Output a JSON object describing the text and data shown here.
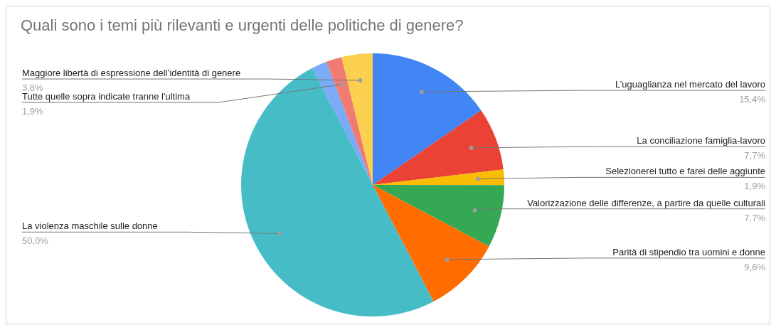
{
  "chart_data": {
    "type": "pie",
    "title": "Quali sono i temi più rilevanti e urgenti delle politiche di genere?",
    "categories": [
      "L’uguaglianza nel mercato del lavoro",
      "La conciliazione famiglia-lavoro",
      "Selezionerei tutto e farei delle aggiunte",
      "Valorizzazione delle differenze, a partire da quelle culturali",
      "Parità di stipendio tra uomini e donne",
      "La violenza maschile sulle donne",
      null,
      "Tutte quelle sopra indicate tranne l'ultima",
      "Maggiore libertà di espressione dell’identità di genere"
    ],
    "values": [
      15.4,
      7.7,
      1.9,
      7.7,
      9.6,
      50.0,
      1.9,
      1.9,
      3.8
    ],
    "value_labels": [
      "15,4%",
      "7,7%",
      "1,9%",
      "7,7%",
      "9,6%",
      "50,0%",
      null,
      "1,9%",
      "3,8%"
    ],
    "colors": [
      "#4285f4",
      "#ea4335",
      "#fbbc04",
      "#34a853",
      "#ff6d01",
      "#46bdc6",
      "#7baaf7",
      "#f07b72",
      "#fcd04f"
    ],
    "legend": false
  }
}
